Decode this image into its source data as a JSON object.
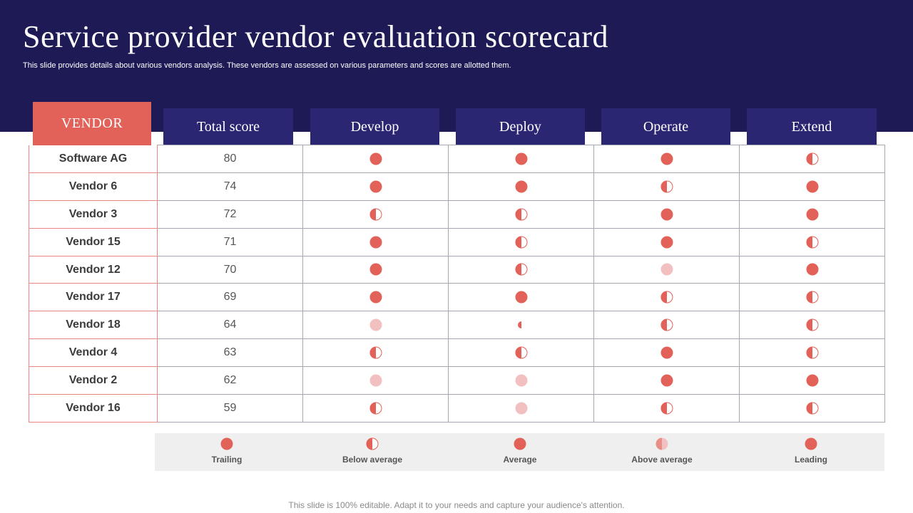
{
  "slide": {
    "title": "Service provider vendor evaluation scorecard",
    "subtitle": "This slide provides details about various vendors analysis. These vendors are assessed on various parameters and scores are allotted them.",
    "footer": "This slide is 100% editable. Adapt it to your needs and capture your audience's attention."
  },
  "colors": {
    "banner": "#1e1a55",
    "header": "#2a2672",
    "vendor_header": "#e2625a",
    "dot": "#e2625a",
    "dot_light": "#f2c0c0"
  },
  "table": {
    "headers": {
      "vendor": "VENDOR",
      "total_score": "Total score",
      "develop": "Develop",
      "deploy": "Deploy",
      "operate": "Operate",
      "extend": "Extend"
    },
    "rows": [
      {
        "vendor": "Software AG",
        "score": "80",
        "develop": "full",
        "deploy": "full",
        "operate": "full",
        "extend": "half"
      },
      {
        "vendor": "Vendor 6",
        "score": "74",
        "develop": "full",
        "deploy": "full",
        "operate": "half",
        "extend": "full"
      },
      {
        "vendor": "Vendor 3",
        "score": "72",
        "develop": "half",
        "deploy": "half",
        "operate": "full",
        "extend": "full"
      },
      {
        "vendor": "Vendor 15",
        "score": "71",
        "develop": "full",
        "deploy": "half",
        "operate": "full",
        "extend": "half"
      },
      {
        "vendor": "Vendor 12",
        "score": "70",
        "develop": "full",
        "deploy": "half",
        "operate": "light",
        "extend": "full"
      },
      {
        "vendor": "Vendor 17",
        "score": "69",
        "develop": "full",
        "deploy": "full",
        "operate": "half",
        "extend": "half"
      },
      {
        "vendor": "Vendor 18",
        "score": "64",
        "develop": "light",
        "deploy": "quarter",
        "operate": "half",
        "extend": "half"
      },
      {
        "vendor": "Vendor 4",
        "score": "63",
        "develop": "half",
        "deploy": "half",
        "operate": "full",
        "extend": "half"
      },
      {
        "vendor": "Vendor 2",
        "score": "62",
        "develop": "light",
        "deploy": "light",
        "operate": "full",
        "extend": "full"
      },
      {
        "vendor": "Vendor 16",
        "score": "59",
        "develop": "half",
        "deploy": "light",
        "operate": "half",
        "extend": "half"
      }
    ]
  },
  "legend": [
    {
      "label": "Trailing",
      "icon": "full"
    },
    {
      "label": "Below average",
      "icon": "half"
    },
    {
      "label": "Average",
      "icon": "full"
    },
    {
      "label": "Above average",
      "icon": "halflight"
    },
    {
      "label": "Leading",
      "icon": "full"
    }
  ]
}
